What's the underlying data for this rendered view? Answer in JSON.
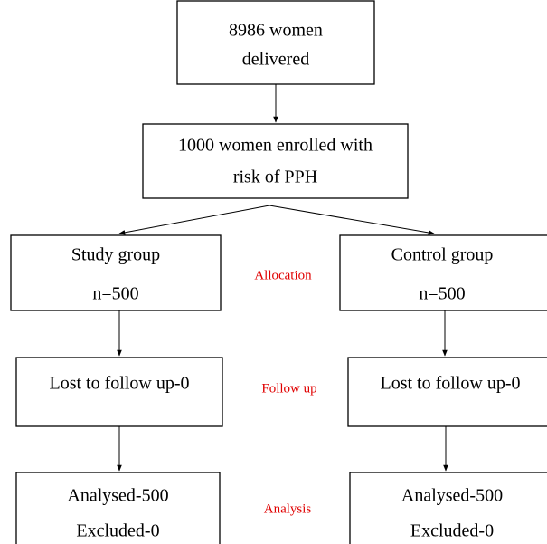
{
  "nodes": [
    {
      "lines": [
        "8986 women",
        "delivered"
      ]
    },
    {
      "lines": [
        "1000 women enrolled with",
        "risk of PPH"
      ]
    },
    {
      "lines": [
        "Study group",
        "n=500"
      ]
    },
    {
      "lines": [
        "Control group",
        "n=500"
      ]
    },
    {
      "lines": [
        "Lost to follow up-0"
      ]
    },
    {
      "lines": [
        "Lost to follow up-0"
      ]
    },
    {
      "lines": [
        "Analysed-500",
        "Excluded-0"
      ]
    },
    {
      "lines": [
        "Analysed-500",
        "Excluded-0"
      ]
    }
  ],
  "stages": [
    "Allocation",
    "Follow up",
    "Analysis"
  ]
}
